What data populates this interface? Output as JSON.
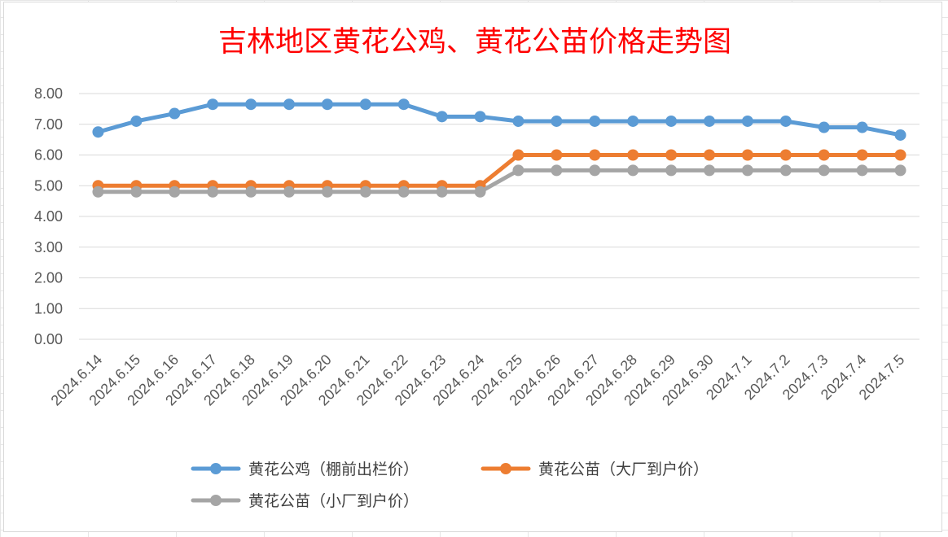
{
  "chart_data": {
    "type": "line",
    "title": "吉林地区黄花公鸡、黄花公苗价格走势图",
    "categories": [
      "2024.6.14",
      "2024.6.15",
      "2024.6.16",
      "2024.6.17",
      "2024.6.18",
      "2024.6.19",
      "2024.6.20",
      "2024.6.21",
      "2024.6.22",
      "2024.6.23",
      "2024.6.24",
      "2024.6.25",
      "2024.6.26",
      "2024.6.27",
      "2024.6.28",
      "2024.6.29",
      "2024.6.30",
      "2024.7.1",
      "2024.7.2",
      "2024.7.3",
      "2024.7.4",
      "2024.7.5"
    ],
    "series": [
      {
        "name": "黄花公鸡（棚前出栏价）",
        "color": "#5b9bd5",
        "values": [
          6.75,
          7.1,
          7.35,
          7.65,
          7.65,
          7.65,
          7.65,
          7.65,
          7.65,
          7.25,
          7.25,
          7.1,
          7.1,
          7.1,
          7.1,
          7.1,
          7.1,
          7.1,
          7.1,
          6.9,
          6.9,
          6.65
        ]
      },
      {
        "name": "黄花公苗（大厂到户价）",
        "color": "#ed7d31",
        "values": [
          5.0,
          5.0,
          5.0,
          5.0,
          5.0,
          5.0,
          5.0,
          5.0,
          5.0,
          5.0,
          5.0,
          6.0,
          6.0,
          6.0,
          6.0,
          6.0,
          6.0,
          6.0,
          6.0,
          6.0,
          6.0,
          6.0
        ]
      },
      {
        "name": "黄花公苗（小厂到户价）",
        "color": "#a5a5a5",
        "values": [
          4.8,
          4.8,
          4.8,
          4.8,
          4.8,
          4.8,
          4.8,
          4.8,
          4.8,
          4.8,
          4.8,
          5.5,
          5.5,
          5.5,
          5.5,
          5.5,
          5.5,
          5.5,
          5.5,
          5.5,
          5.5,
          5.5
        ]
      }
    ],
    "ylim": [
      0,
      8
    ],
    "yticks": [
      "0.00",
      "1.00",
      "2.00",
      "3.00",
      "4.00",
      "5.00",
      "6.00",
      "7.00",
      "8.00"
    ],
    "grid": true,
    "legend": "bottom"
  }
}
